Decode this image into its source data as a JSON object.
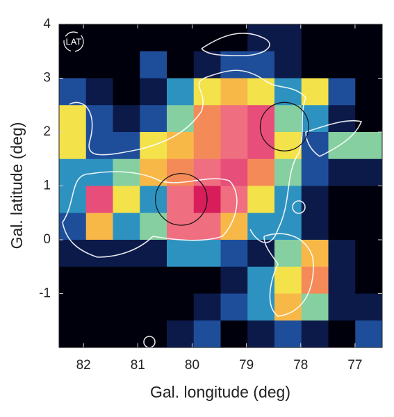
{
  "chart_data": {
    "type": "heatmap",
    "logo": "LAT",
    "xlabel": "Gal. longitude (deg)",
    "ylabel": "Gal. latitude (deg)",
    "xlim": [
      82.45,
      76.5
    ],
    "ylim": [
      -2,
      4
    ],
    "xticks": [
      82,
      81,
      80,
      79,
      78,
      77
    ],
    "yticks": [
      -1,
      0,
      1,
      2,
      3,
      4
    ],
    "colorscale": [
      "#00000c",
      "#0c1a4a",
      "#1e4e9a",
      "#2e92c0",
      "#86cfa0",
      "#f3e24a",
      "#f8b848",
      "#f48a58",
      "#ef6e80",
      "#e84e7a",
      "#d81e5a"
    ],
    "z": [
      [
        0,
        0,
        0,
        0,
        0,
        0,
        0,
        1,
        1,
        0,
        0,
        0
      ],
      [
        0,
        0,
        0,
        2,
        0,
        1,
        2,
        2,
        1,
        0,
        0,
        0
      ],
      [
        2,
        1,
        0,
        1,
        3,
        5,
        6,
        5,
        3,
        5,
        2,
        0
      ],
      [
        5,
        2,
        1,
        2,
        4,
        7,
        8,
        9,
        4,
        3,
        1,
        0
      ],
      [
        5,
        2,
        2,
        5,
        6,
        7,
        8,
        9,
        5,
        2,
        4,
        4
      ],
      [
        3,
        3,
        4,
        6,
        7,
        8,
        9,
        7,
        4,
        2,
        1,
        1
      ],
      [
        3,
        9,
        5,
        3,
        8,
        10,
        8,
        5,
        3,
        1,
        0,
        0
      ],
      [
        2,
        6,
        3,
        4,
        8,
        8,
        6,
        3,
        3,
        1,
        0,
        0
      ],
      [
        1,
        1,
        1,
        1,
        3,
        3,
        2,
        1,
        4,
        6,
        1,
        0
      ],
      [
        0,
        0,
        0,
        0,
        0,
        0,
        1,
        3,
        5,
        7,
        1,
        0
      ],
      [
        0,
        0,
        0,
        0,
        0,
        1,
        2,
        3,
        6,
        4,
        1,
        1
      ],
      [
        0,
        0,
        0,
        0,
        1,
        2,
        0,
        1,
        2,
        1,
        0,
        2
      ]
    ],
    "circles": [
      {
        "x": 80.2,
        "y": 0.75,
        "r": 0.48
      },
      {
        "x": 78.3,
        "y": 2.1,
        "r": 0.45
      }
    ]
  }
}
